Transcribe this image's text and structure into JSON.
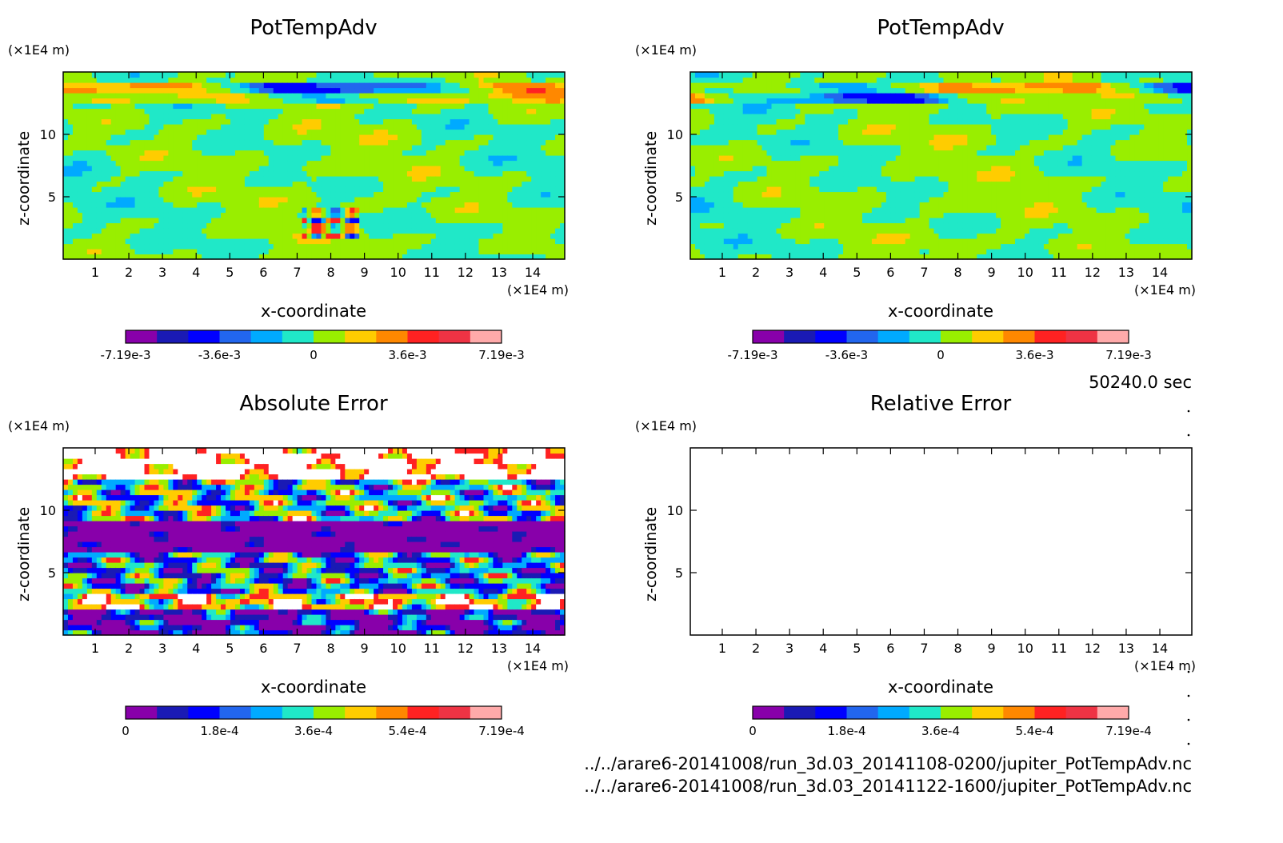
{
  "footer": {
    "time": "50240.0 sec",
    "file1": "../../arare6-20141008/run_3d.03_20141108-0200/jupiter_PotTempAdv.nc",
    "file2": "../../arare6-20141008/run_3d.03_20141122-1600/jupiter_PotTempAdv.nc"
  },
  "palette": [
    "#8800aa",
    "#1a1ab4",
    "#0000ff",
    "#2266ee",
    "#00aaff",
    "#20e8c8",
    "#99ee00",
    "#ffcc00",
    "#ff8800",
    "#ff2222",
    "#ee3344",
    "#ffaaaa"
  ],
  "chart_data": [
    {
      "type": "heatmap",
      "title": "PotTempAdv",
      "xlabel": "x-coordinate",
      "ylabel": "z-coordinate",
      "x_unit": "(×1E4 m)",
      "y_unit": "(×1E4 m)",
      "xlim": [
        0.05,
        14.95
      ],
      "ylim": [
        0,
        15
      ],
      "x_ticks": [
        1,
        2,
        3,
        4,
        5,
        6,
        7,
        8,
        9,
        10,
        11,
        12,
        13,
        14
      ],
      "y_ticks": [
        5,
        10
      ],
      "colorbar": {
        "min": -0.00719,
        "max": 0.00719,
        "labels": [
          "-7.19e-3",
          "-3.6e-3",
          "0",
          "3.6e-3",
          "7.19e-3"
        ]
      },
      "field": "potadv1"
    },
    {
      "type": "heatmap",
      "title": "PotTempAdv",
      "xlabel": "x-coordinate",
      "ylabel": "z-coordinate",
      "x_unit": "(×1E4 m)",
      "y_unit": "(×1E4 m)",
      "xlim": [
        0.05,
        14.95
      ],
      "ylim": [
        0,
        15
      ],
      "x_ticks": [
        1,
        2,
        3,
        4,
        5,
        6,
        7,
        8,
        9,
        10,
        11,
        12,
        13,
        14
      ],
      "y_ticks": [
        5,
        10
      ],
      "colorbar": {
        "min": -0.00719,
        "max": 0.00719,
        "labels": [
          "-7.19e-3",
          "-3.6e-3",
          "0",
          "3.6e-3",
          "7.19e-3"
        ]
      },
      "field": "potadv2"
    },
    {
      "type": "heatmap",
      "title": "Absolute Error",
      "xlabel": "x-coordinate",
      "ylabel": "z-coordinate",
      "x_unit": "(×1E4 m)",
      "y_unit": "(×1E4 m)",
      "xlim": [
        0.05,
        14.95
      ],
      "ylim": [
        0,
        15
      ],
      "x_ticks": [
        1,
        2,
        3,
        4,
        5,
        6,
        7,
        8,
        9,
        10,
        11,
        12,
        13,
        14
      ],
      "y_ticks": [
        5,
        10
      ],
      "colorbar": {
        "min": 0,
        "max": 0.000719,
        "labels": [
          "0",
          "1.8e-4",
          "3.6e-4",
          "5.4e-4",
          "7.19e-4"
        ]
      },
      "field": "abserr"
    },
    {
      "type": "heatmap",
      "title": "Relative Error",
      "xlabel": "x-coordinate",
      "ylabel": "z-coordinate",
      "x_unit": "(×1E4 m)",
      "y_unit": "(×1E4 m)",
      "xlim": [
        0.05,
        14.95
      ],
      "ylim": [
        0,
        15
      ],
      "x_ticks": [
        1,
        2,
        3,
        4,
        5,
        6,
        7,
        8,
        9,
        10,
        11,
        12,
        13,
        14
      ],
      "y_ticks": [
        5,
        10
      ],
      "colorbar": {
        "min": 0,
        "max": 0.000719,
        "labels": [
          "0",
          "1.8e-4",
          "3.6e-4",
          "5.4e-4",
          "7.19e-4"
        ]
      },
      "field": "empty"
    }
  ]
}
